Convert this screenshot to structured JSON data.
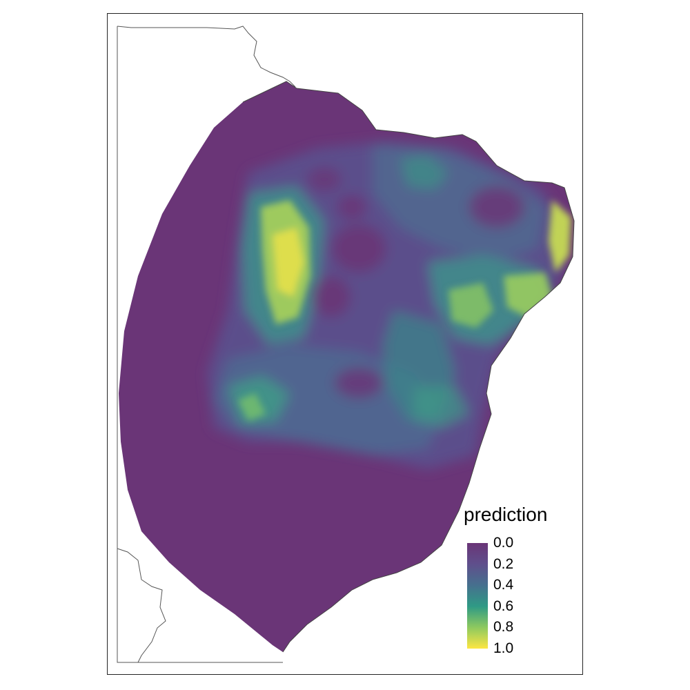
{
  "legend": {
    "title": "prediction",
    "ticks": [
      "0.0",
      "0.2",
      "0.4",
      "0.6",
      "0.8",
      "1.0"
    ],
    "colors": [
      "#6a3577",
      "#5f4f8c",
      "#46708e",
      "#2f9a85",
      "#8ec95f",
      "#fde643"
    ]
  },
  "map": {
    "region_fill": "#6a3577",
    "outline_color": "#555555"
  }
}
